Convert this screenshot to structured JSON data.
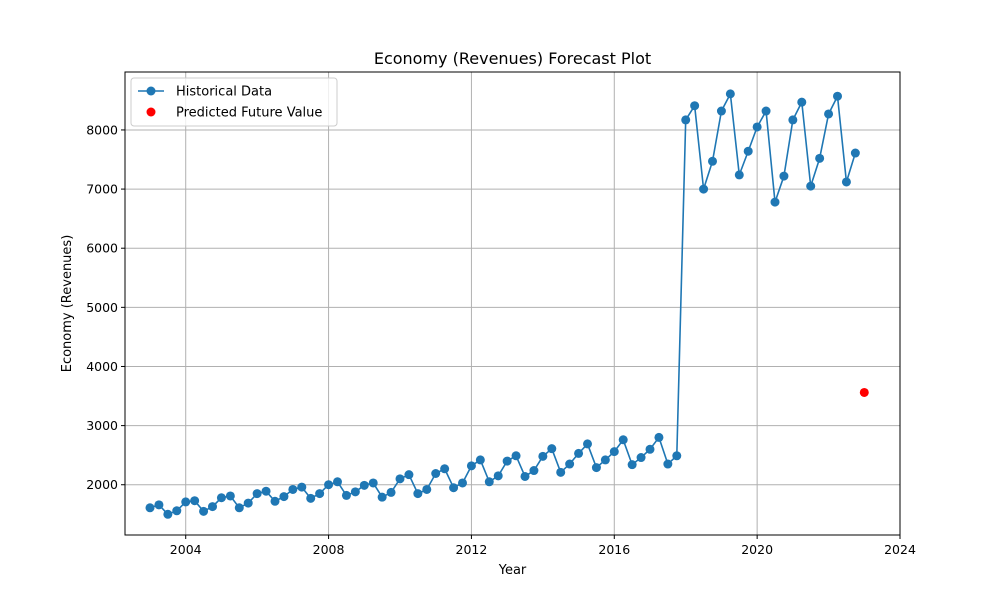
{
  "chart_data": {
    "type": "line",
    "title": "Economy (Revenues) Forecast Plot",
    "xlabel": "Year",
    "ylabel": "Economy (Revenues)",
    "xlim": [
      2002.3,
      2024.0
    ],
    "ylim": [
      1150,
      8980
    ],
    "xticks": [
      2004,
      2008,
      2012,
      2016,
      2020,
      2024
    ],
    "yticks": [
      2000,
      3000,
      4000,
      5000,
      6000,
      7000,
      8000
    ],
    "grid": true,
    "legend_position": "top-left",
    "colors": {
      "historical": "#1f77b4",
      "predicted": "#ff0000"
    },
    "series": [
      {
        "name": "Historical Data",
        "kind": "line-marker",
        "x": [
          2003.0,
          2003.25,
          2003.5,
          2003.75,
          2004.0,
          2004.25,
          2004.5,
          2004.75,
          2005.0,
          2005.25,
          2005.5,
          2005.75,
          2006.0,
          2006.25,
          2006.5,
          2006.75,
          2007.0,
          2007.25,
          2007.5,
          2007.75,
          2008.0,
          2008.25,
          2008.5,
          2008.75,
          2009.0,
          2009.25,
          2009.5,
          2009.75,
          2010.0,
          2010.25,
          2010.5,
          2010.75,
          2011.0,
          2011.25,
          2011.5,
          2011.75,
          2012.0,
          2012.25,
          2012.5,
          2012.75,
          2013.0,
          2013.25,
          2013.5,
          2013.75,
          2014.0,
          2014.25,
          2014.5,
          2014.75,
          2015.0,
          2015.25,
          2015.5,
          2015.75,
          2016.0,
          2016.25,
          2016.5,
          2016.75,
          2017.0,
          2017.25,
          2017.5,
          2017.75,
          2018.0,
          2018.25,
          2018.5,
          2018.75,
          2019.0,
          2019.25,
          2019.5,
          2019.75,
          2020.0,
          2020.25,
          2020.5,
          2020.75,
          2021.0,
          2021.25,
          2021.5,
          2021.75,
          2022.0,
          2022.25,
          2022.5,
          2022.75
        ],
        "y": [
          1610,
          1660,
          1500,
          1560,
          1710,
          1730,
          1550,
          1630,
          1780,
          1810,
          1610,
          1690,
          1850,
          1890,
          1720,
          1800,
          1920,
          1960,
          1770,
          1850,
          2000,
          2050,
          1820,
          1880,
          1990,
          2030,
          1790,
          1870,
          2100,
          2170,
          1850,
          1920,
          2190,
          2270,
          1950,
          2030,
          2320,
          2420,
          2050,
          2150,
          2400,
          2490,
          2140,
          2240,
          2480,
          2610,
          2210,
          2350,
          2530,
          2690,
          2290,
          2420,
          2560,
          2760,
          2340,
          2460,
          2600,
          2800,
          2350,
          2490,
          8170,
          8410,
          7000,
          7470,
          8320,
          8610,
          7240,
          7640,
          8050,
          8320,
          6780,
          7220,
          8170,
          8470,
          7050,
          7520,
          8270,
          8570,
          7120,
          7610
        ]
      },
      {
        "name": "Predicted Future Value",
        "kind": "scatter",
        "x": [
          2023.0
        ],
        "y": [
          3560
        ]
      }
    ]
  }
}
